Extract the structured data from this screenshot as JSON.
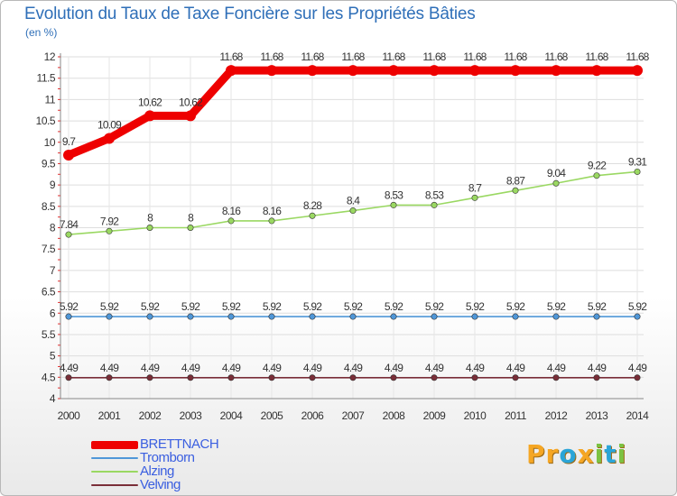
{
  "title": "Evolution du Taux de Taxe Foncière sur les Propriétés Bâties",
  "unit_label": "(en %)",
  "logo": {
    "letters": [
      "P",
      "r",
      "o",
      "x",
      "i",
      "t",
      "i"
    ],
    "colors": [
      "#f5a623",
      "#f5a623",
      "#2aa5d8",
      "#f5a623",
      "#7cc242",
      "#2aa5d8",
      "#7cc242"
    ]
  },
  "chart_data": {
    "type": "line",
    "title": "Evolution du Taux de Taxe Foncière sur les Propriétés Bâties",
    "ylabel": "(en %)",
    "ylim": [
      4,
      12
    ],
    "yticks": [
      "4",
      "4.5",
      "5",
      "5.5",
      "6",
      "6.5",
      "7",
      "7.5",
      "8",
      "8.5",
      "9",
      "9.5",
      "10",
      "10.5",
      "11",
      "11.5",
      "12"
    ],
    "categories": [
      "2000",
      "2001",
      "2002",
      "2003",
      "2004",
      "2005",
      "2006",
      "2007",
      "2008",
      "2009",
      "2010",
      "2011",
      "2012",
      "2013",
      "2014"
    ],
    "grid": true,
    "legend_position": "bottom-left",
    "series": [
      {
        "name": "BRETTNACH",
        "color": "#ee0000",
        "values": [
          9.7,
          10.09,
          10.62,
          10.62,
          11.68,
          11.68,
          11.68,
          11.68,
          11.68,
          11.68,
          11.68,
          11.68,
          11.68,
          11.68,
          11.68
        ],
        "labels": [
          "9.7",
          "10.09",
          "10.62",
          "10.62",
          "11.68",
          "11.68",
          "11.68",
          "11.68",
          "11.68",
          "11.68",
          "11.68",
          "11.68",
          "11.68",
          "11.68",
          "11.68"
        ]
      },
      {
        "name": "Tromborn",
        "color": "#4f97d8",
        "values": [
          5.92,
          5.92,
          5.92,
          5.92,
          5.92,
          5.92,
          5.92,
          5.92,
          5.92,
          5.92,
          5.92,
          5.92,
          5.92,
          5.92,
          5.92
        ],
        "labels": [
          "5.92",
          "5.92",
          "5.92",
          "5.92",
          "5.92",
          "5.92",
          "5.92",
          "5.92",
          "5.92",
          "5.92",
          "5.92",
          "5.92",
          "5.92",
          "5.92",
          "5.92"
        ]
      },
      {
        "name": "Alzing",
        "color": "#9ad862",
        "values": [
          7.84,
          7.92,
          8,
          8,
          8.16,
          8.16,
          8.28,
          8.4,
          8.53,
          8.53,
          8.7,
          8.87,
          9.04,
          9.22,
          9.31
        ],
        "labels": [
          "7.84",
          "7.92",
          "8",
          "8",
          "8.16",
          "8.16",
          "8.28",
          "8.4",
          "8.53",
          "8.53",
          "8.7",
          "8.87",
          "9.04",
          "9.22",
          "9.31"
        ]
      },
      {
        "name": "Velving",
        "color": "#7a2e38",
        "values": [
          4.49,
          4.49,
          4.49,
          4.49,
          4.49,
          4.49,
          4.49,
          4.49,
          4.49,
          4.49,
          4.49,
          4.49,
          4.49,
          4.49,
          4.49
        ],
        "labels": [
          "4.49",
          "4.49",
          "4.49",
          "4.49",
          "4.49",
          "4.49",
          "4.49",
          "4.49",
          "4.49",
          "4.49",
          "4.49",
          "4.49",
          "4.49",
          "4.49",
          "4.49"
        ]
      }
    ]
  }
}
